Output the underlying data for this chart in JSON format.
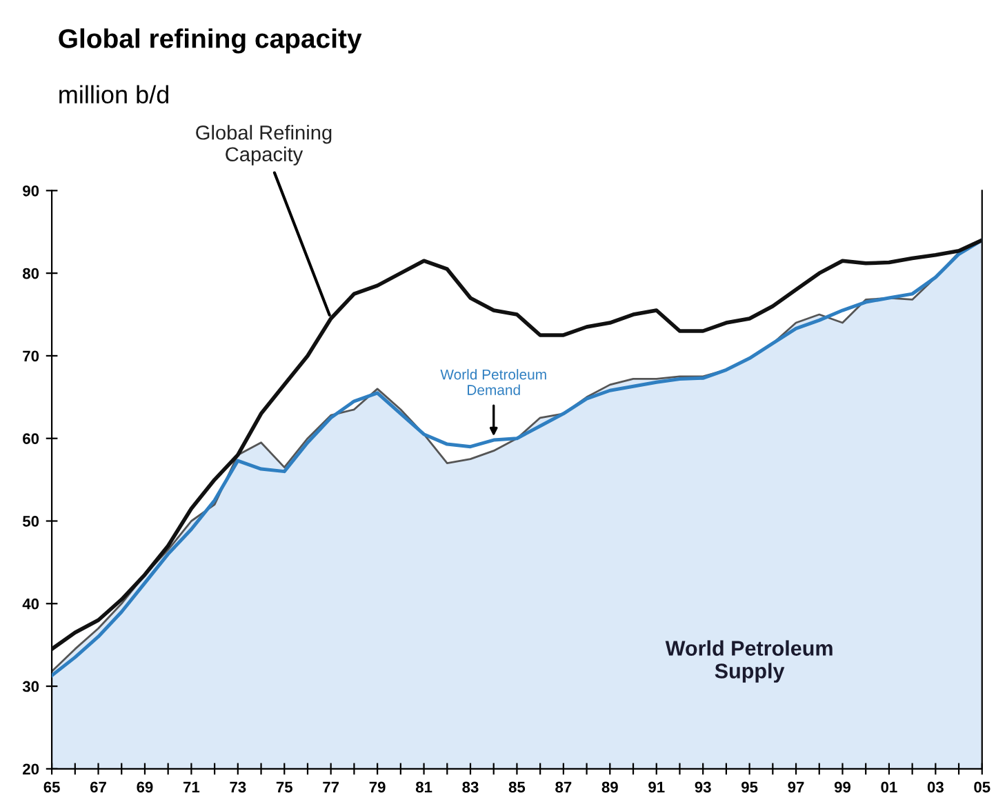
{
  "chart_data": {
    "type": "line",
    "title": "Global refining capacity",
    "subtitle": "million b/d",
    "x": [
      1965,
      1966,
      1967,
      1968,
      1969,
      1970,
      1971,
      1972,
      1973,
      1974,
      1975,
      1976,
      1977,
      1978,
      1979,
      1980,
      1981,
      1982,
      1983,
      1984,
      1985,
      1986,
      1987,
      1988,
      1989,
      1990,
      1991,
      1992,
      1993,
      1994,
      1995,
      1996,
      1997,
      1998,
      1999,
      2000,
      2001,
      2002,
      2003,
      2004,
      2005
    ],
    "series": [
      {
        "name": "World Petroleum Supply",
        "type": "area",
        "color": "#dbe9f8",
        "values": [
          31.8,
          34.5,
          37,
          40,
          43.5,
          46.5,
          50,
          52,
          58,
          59.5,
          56.5,
          60,
          62.8,
          63.5,
          66,
          63.5,
          60.5,
          57,
          57.5,
          58.5,
          60,
          62.5,
          63,
          65,
          66.5,
          67.2,
          67.2,
          67.5,
          67.5,
          68.3,
          69.7,
          71.5,
          74,
          75,
          74,
          76.8,
          77,
          76.8,
          79.5,
          82.5,
          84
        ]
      },
      {
        "name": "World Petroleum Demand",
        "color": "#2f7fc1",
        "values": [
          31.3,
          33.5,
          36,
          39,
          42.5,
          46,
          49,
          52.5,
          57.3,
          56.3,
          56,
          59.5,
          62.5,
          64.5,
          65.5,
          63,
          60.5,
          59.3,
          59,
          59.8,
          60,
          61.5,
          63,
          64.8,
          65.8,
          66.3,
          66.8,
          67.2,
          67.3,
          68.3,
          69.7,
          71.5,
          73.3,
          74.3,
          75.5,
          76.5,
          77,
          77.5,
          79.5,
          82.3,
          84
        ]
      },
      {
        "name": "Global Refining Capacity",
        "color": "#111111",
        "values": [
          34.5,
          36.5,
          38,
          40.5,
          43.5,
          47,
          51.5,
          55,
          58,
          63,
          66.5,
          70,
          74.5,
          77.5,
          78.5,
          80,
          81.5,
          80.5,
          77,
          75.5,
          75,
          72.5,
          72.5,
          73.5,
          74,
          75,
          75.5,
          73,
          73,
          74,
          74.5,
          76,
          78,
          80,
          81.5,
          81.2,
          81.3,
          81.8,
          82.2,
          82.7,
          84
        ]
      }
    ],
    "xlim": [
      1965,
      2005
    ],
    "ylim": [
      20,
      90
    ],
    "xticks": [
      {
        "value": 1965,
        "label": "65"
      },
      {
        "value": 1966,
        "label": null
      },
      {
        "value": 1967,
        "label": "67"
      },
      {
        "value": 1968,
        "label": null
      },
      {
        "value": 1969,
        "label": "69"
      },
      {
        "value": 1970,
        "label": null
      },
      {
        "value": 1971,
        "label": "71"
      },
      {
        "value": 1972,
        "label": null
      },
      {
        "value": 1973,
        "label": "73"
      },
      {
        "value": 1974,
        "label": null
      },
      {
        "value": 1975,
        "label": "75"
      },
      {
        "value": 1976,
        "label": null
      },
      {
        "value": 1977,
        "label": "77"
      },
      {
        "value": 1978,
        "label": null
      },
      {
        "value": 1979,
        "label": "79"
      },
      {
        "value": 1980,
        "label": null
      },
      {
        "value": 1981,
        "label": "81"
      },
      {
        "value": 1982,
        "label": null
      },
      {
        "value": 1983,
        "label": "83"
      },
      {
        "value": 1984,
        "label": null
      },
      {
        "value": 1985,
        "label": "85"
      },
      {
        "value": 1986,
        "label": null
      },
      {
        "value": 1987,
        "label": "87"
      },
      {
        "value": 1988,
        "label": null
      },
      {
        "value": 1989,
        "label": "89"
      },
      {
        "value": 1990,
        "label": null
      },
      {
        "value": 1991,
        "label": "91"
      },
      {
        "value": 1992,
        "label": null
      },
      {
        "value": 1993,
        "label": "93"
      },
      {
        "value": 1994,
        "label": null
      },
      {
        "value": 1995,
        "label": "95"
      },
      {
        "value": 1996,
        "label": null
      },
      {
        "value": 1997,
        "label": "97"
      },
      {
        "value": 1998,
        "label": null
      },
      {
        "value": 1999,
        "label": "99"
      },
      {
        "value": 2000,
        "label": null
      },
      {
        "value": 2001,
        "label": "01"
      },
      {
        "value": 2002,
        "label": null
      },
      {
        "value": 2003,
        "label": "03"
      },
      {
        "value": 2004,
        "label": null
      },
      {
        "value": 2005,
        "label": "05"
      }
    ],
    "yticks": [
      20,
      30,
      40,
      50,
      60,
      70,
      80,
      90
    ],
    "grid": false,
    "legend": false,
    "marker": "none",
    "line_style": "solid"
  }
}
